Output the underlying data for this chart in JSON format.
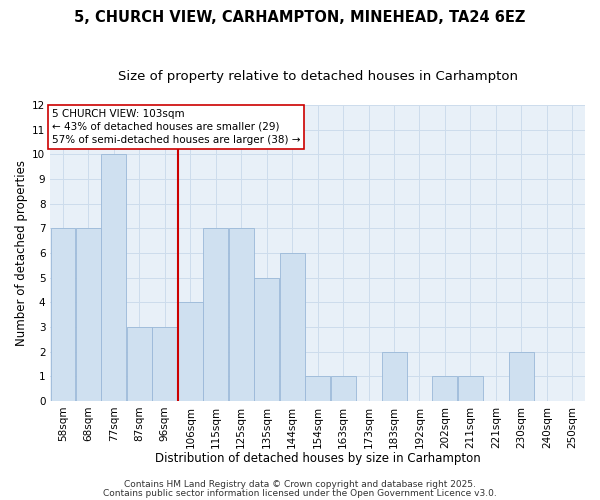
{
  "title": "5, CHURCH VIEW, CARHAMPTON, MINEHEAD, TA24 6EZ",
  "subtitle": "Size of property relative to detached houses in Carhampton",
  "xlabel": "Distribution of detached houses by size in Carhampton",
  "ylabel": "Number of detached properties",
  "bin_labels": [
    "58sqm",
    "68sqm",
    "77sqm",
    "87sqm",
    "96sqm",
    "106sqm",
    "115sqm",
    "125sqm",
    "135sqm",
    "144sqm",
    "154sqm",
    "163sqm",
    "173sqm",
    "183sqm",
    "192sqm",
    "202sqm",
    "211sqm",
    "221sqm",
    "230sqm",
    "240sqm",
    "250sqm"
  ],
  "bar_values": [
    7,
    7,
    10,
    3,
    3,
    4,
    7,
    7,
    5,
    6,
    1,
    1,
    0,
    2,
    0,
    1,
    1,
    0,
    2,
    0,
    0
  ],
  "bar_color": "#cfe0f0",
  "bar_edge_color": "#9ab8d8",
  "grid_color": "#cddcec",
  "background_color": "#f0f5fb",
  "plot_bg_color": "#e8f0f8",
  "vline_color": "#cc0000",
  "vline_x": 5,
  "ylim": [
    0,
    12
  ],
  "yticks": [
    0,
    1,
    2,
    3,
    4,
    5,
    6,
    7,
    8,
    9,
    10,
    11,
    12
  ],
  "annotation_title": "5 CHURCH VIEW: 103sqm",
  "annotation_line1": "← 43% of detached houses are smaller (29)",
  "annotation_line2": "57% of semi-detached houses are larger (38) →",
  "annotation_box_color": "#ffffff",
  "annotation_box_edge": "#cc0000",
  "footer1": "Contains HM Land Registry data © Crown copyright and database right 2025.",
  "footer2": "Contains public sector information licensed under the Open Government Licence v3.0.",
  "title_fontsize": 10.5,
  "subtitle_fontsize": 9.5,
  "axis_label_fontsize": 8.5,
  "tick_fontsize": 7.5,
  "annotation_fontsize": 7.5,
  "footer_fontsize": 6.5
}
